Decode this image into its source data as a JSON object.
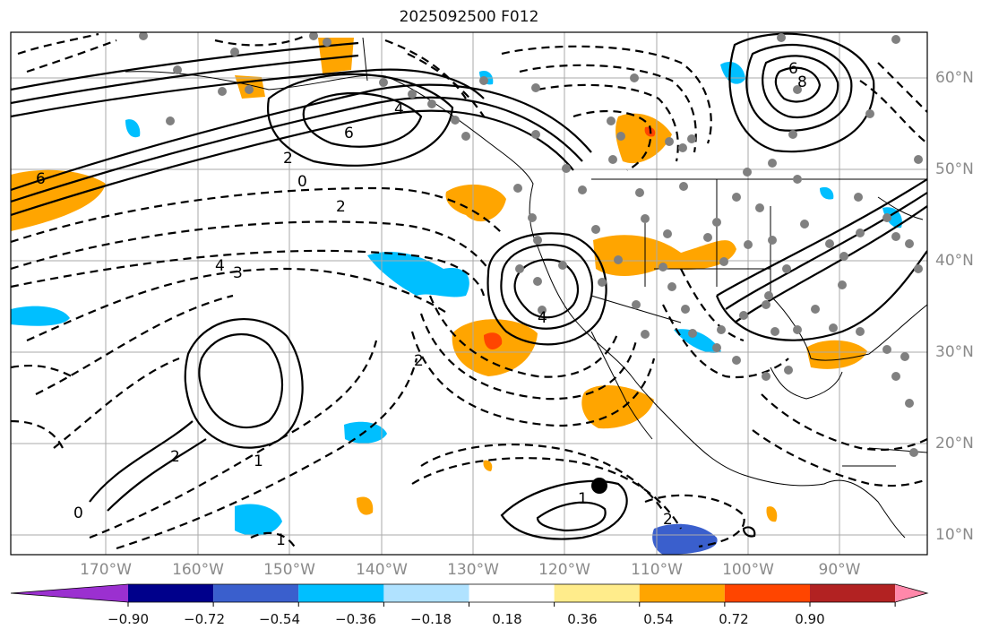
{
  "title": "2025092500 F012",
  "lat_ticks": [
    "60°N",
    "50°N",
    "40°N",
    "30°N",
    "20°N",
    "10°N"
  ],
  "lon_ticks": [
    "170°W",
    "160°W",
    "150°W",
    "140°W",
    "130°W",
    "120°W",
    "110°W",
    "100°W",
    "90°W"
  ],
  "colorbar": {
    "labels": [
      "−0.90",
      "−0.72",
      "−0.54",
      "−0.36",
      "−0.18",
      "0.18",
      "0.36",
      "0.54",
      "0.72",
      "0.90"
    ],
    "colors": [
      "#9b30d0",
      "#00008b",
      "#3a5fcd",
      "#00bfff",
      "#b0e2ff",
      "#ffffff",
      "#ffec8b",
      "#ffa500",
      "#ff4500",
      "#b22222",
      "#ff88aa"
    ]
  },
  "contour_labels": [
    "6",
    "8",
    "6",
    "6",
    "4",
    "2",
    "0",
    "2",
    "4",
    "3",
    "4",
    "2",
    "1",
    "2",
    "1",
    "0",
    "1",
    "2"
  ],
  "fill_colors": {
    "orange": "#ffa500",
    "red": "#ff4500",
    "cyan": "#00bfff",
    "darkblue": "#3a5fcd"
  }
}
